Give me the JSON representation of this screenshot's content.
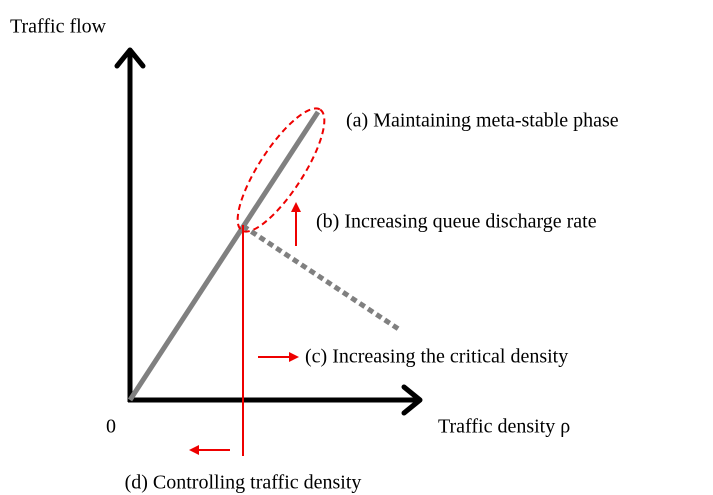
{
  "axes": {
    "y_label": "Traffic flow",
    "x_label": "Traffic density ρ",
    "origin": "0"
  },
  "annotations": {
    "a": "(a) Maintaining meta-stable phase",
    "b": "(b) Increasing queue discharge rate",
    "c": "(c) Increasing the critical density",
    "d": "(d) Controlling traffic density"
  }
}
